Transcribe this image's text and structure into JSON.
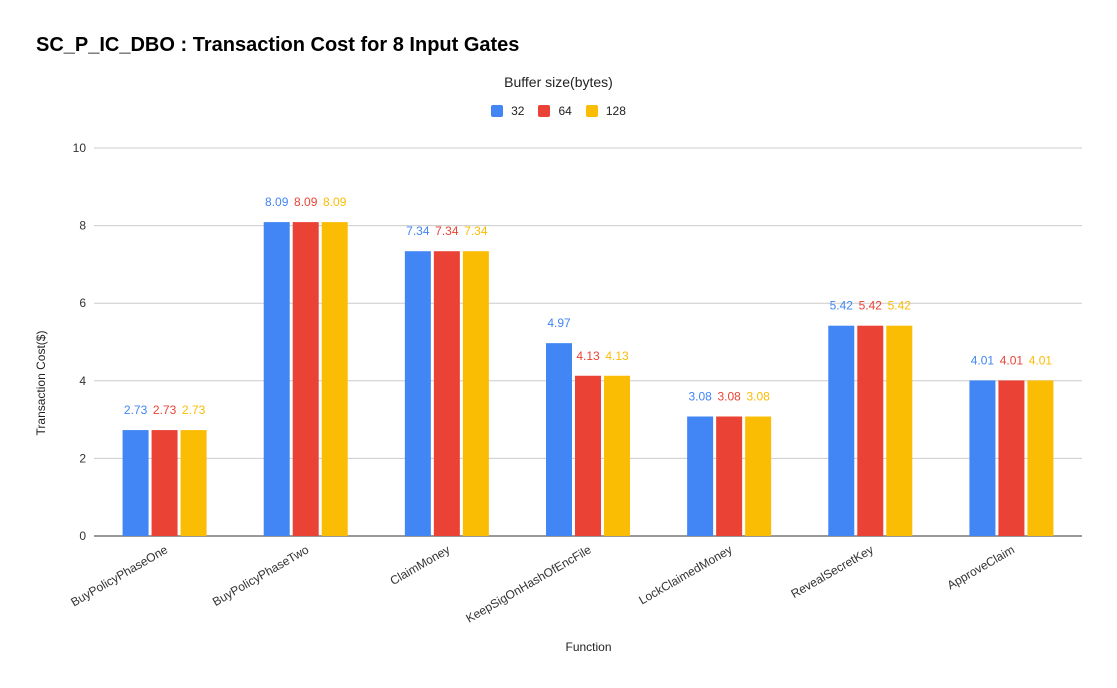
{
  "chart_data": {
    "type": "bar",
    "title": "SC_P_IC_DBO : Transaction Cost for 8 Input Gates",
    "legend_title": "Buffer size(bytes)",
    "xlabel": "Function",
    "ylabel": "Transaction Cost($)",
    "ylim": [
      0,
      10
    ],
    "yticks": [
      0,
      2,
      4,
      6,
      8,
      10
    ],
    "grid": true,
    "legend_position": "top-center",
    "categories": [
      "BuyPolicyPhaseOne",
      "BuyPolicyPhaseTwo",
      "ClaimMoney",
      "KeepSigOnHashOfEncFile",
      "LockClaimedMoney",
      "RevealSecretKey",
      "ApproveClaim"
    ],
    "series": [
      {
        "name": "32",
        "color": "#4285f4",
        "values": [
          2.73,
          8.09,
          7.34,
          4.97,
          3.08,
          5.42,
          4.01
        ]
      },
      {
        "name": "64",
        "color": "#ea4335",
        "values": [
          2.73,
          8.09,
          7.34,
          4.13,
          3.08,
          5.42,
          4.01
        ]
      },
      {
        "name": "128",
        "color": "#fbbc04",
        "values": [
          2.73,
          8.09,
          7.34,
          4.13,
          3.08,
          5.42,
          4.01
        ]
      }
    ]
  }
}
